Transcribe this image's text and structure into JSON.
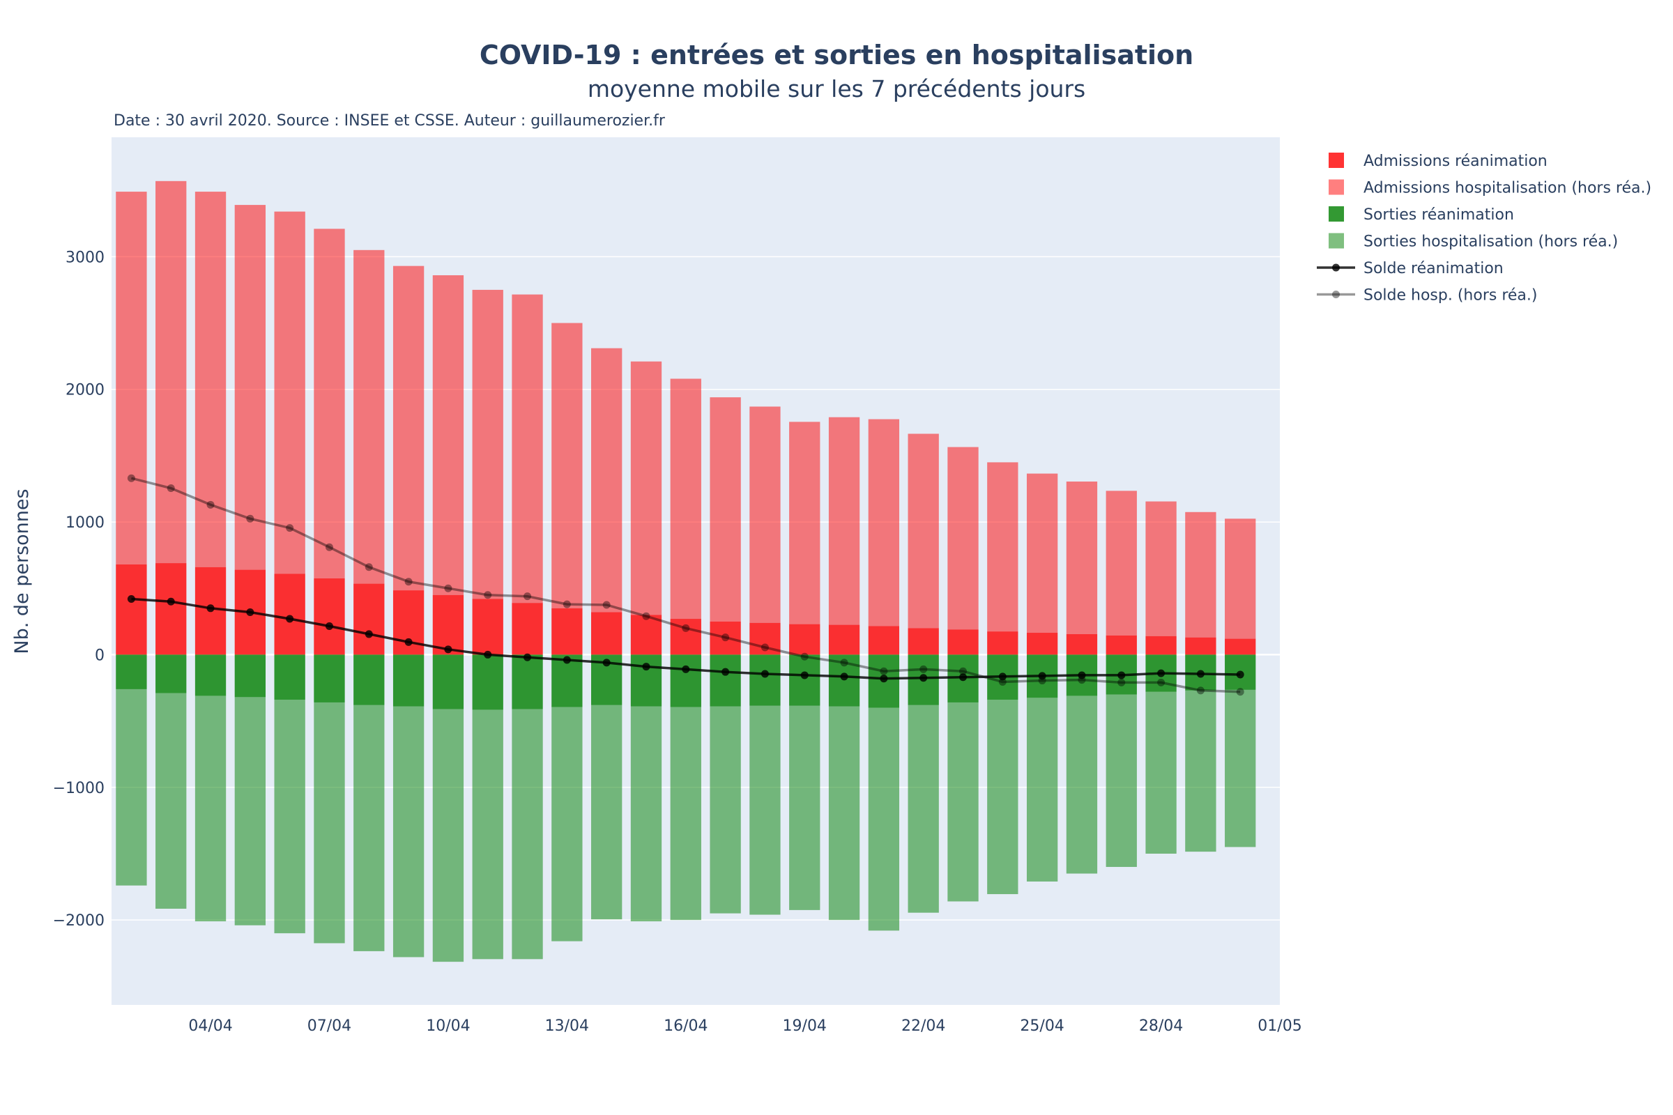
{
  "chart_data": {
    "type": "bar",
    "title": "COVID-19 : entrées et sorties en hospitalisation",
    "subtitle": "moyenne mobile sur les 7 précédents jours",
    "source": "Date : 30 avril 2020. Source : INSEE et CSSE. Auteur : guillaumerozier.fr",
    "ylabel": "Nb. de personnes",
    "xlabel": "",
    "barmode": "relative",
    "ylim": [
      -2640,
      3900
    ],
    "xlim": [
      "2020-04-01T12:00",
      "2020-05-01"
    ],
    "ytick_values": [
      -2000,
      -1000,
      0,
      1000,
      2000,
      3000
    ],
    "ytick_labels": [
      "−2000",
      "−1000",
      "0",
      "1000",
      "2000",
      "3000"
    ],
    "xtick_values": [
      "2020-04-04",
      "2020-04-07",
      "2020-04-10",
      "2020-04-13",
      "2020-04-16",
      "2020-04-19",
      "2020-04-22",
      "2020-04-25",
      "2020-04-28",
      "2020-05-01"
    ],
    "xtick_labels": [
      "04/04",
      "07/04",
      "10/04",
      "13/04",
      "16/04",
      "19/04",
      "22/04",
      "25/04",
      "28/04",
      "01/05"
    ],
    "x": [
      "2020-04-02",
      "2020-04-03",
      "2020-04-04",
      "2020-04-05",
      "2020-04-06",
      "2020-04-07",
      "2020-04-08",
      "2020-04-09",
      "2020-04-10",
      "2020-04-11",
      "2020-04-12",
      "2020-04-13",
      "2020-04-14",
      "2020-04-15",
      "2020-04-16",
      "2020-04-17",
      "2020-04-18",
      "2020-04-19",
      "2020-04-20",
      "2020-04-21",
      "2020-04-22",
      "2020-04-23",
      "2020-04-24",
      "2020-04-25",
      "2020-04-26",
      "2020-04-27",
      "2020-04-28",
      "2020-04-29",
      "2020-04-30"
    ],
    "grid": true,
    "legend_position": "right",
    "series": [
      {
        "name": "Admissions réanimation",
        "kind": "bar",
        "color": "#ff0000",
        "opacity": 0.8,
        "values": [
          680,
          690,
          660,
          640,
          610,
          575,
          535,
          485,
          450,
          420,
          390,
          350,
          320,
          300,
          270,
          250,
          240,
          230,
          225,
          215,
          200,
          190,
          175,
          165,
          155,
          145,
          140,
          130,
          120
        ]
      },
      {
        "name": "Admissions hospitalisation (hors réa.)",
        "kind": "bar",
        "color": "#ff0000",
        "opacity": 0.5,
        "values": [
          2810,
          2880,
          2830,
          2750,
          2730,
          2635,
          2515,
          2445,
          2410,
          2330,
          2325,
          2150,
          1990,
          1910,
          1810,
          1690,
          1630,
          1525,
          1565,
          1560,
          1465,
          1375,
          1275,
          1200,
          1150,
          1090,
          1015,
          945,
          905
        ]
      },
      {
        "name": "Sorties réanimation",
        "kind": "bar",
        "color": "#008000",
        "opacity": 0.8,
        "values": [
          -260,
          -290,
          -310,
          -320,
          -340,
          -360,
          -380,
          -390,
          -410,
          -415,
          -410,
          -395,
          -380,
          -390,
          -395,
          -390,
          -385,
          -385,
          -390,
          -400,
          -380,
          -360,
          -340,
          -325,
          -310,
          -300,
          -280,
          -270,
          -265
        ]
      },
      {
        "name": "Sorties hospitalisation (hors réa.)",
        "kind": "bar",
        "color": "#008000",
        "opacity": 0.5,
        "values": [
          -1480,
          -1625,
          -1700,
          -1720,
          -1760,
          -1815,
          -1855,
          -1890,
          -1905,
          -1880,
          -1885,
          -1765,
          -1615,
          -1620,
          -1605,
          -1560,
          -1575,
          -1540,
          -1610,
          -1680,
          -1565,
          -1500,
          -1465,
          -1385,
          -1340,
          -1300,
          -1220,
          -1215,
          -1185
        ]
      },
      {
        "name": "Solde réanimation",
        "kind": "line",
        "color": "#000000",
        "opacity": 0.8,
        "values": [
          420,
          400,
          350,
          320,
          270,
          215,
          155,
          95,
          40,
          0,
          -20,
          -40,
          -60,
          -90,
          -110,
          -130,
          -145,
          -155,
          -165,
          -180,
          -175,
          -170,
          -165,
          -160,
          -155,
          -155,
          -140,
          -145,
          -150
        ]
      },
      {
        "name": "Solde hosp. (hors réa.)",
        "kind": "line",
        "color": "#000000",
        "opacity": 0.4,
        "values": [
          1330,
          1255,
          1130,
          1025,
          955,
          810,
          660,
          550,
          500,
          450,
          440,
          380,
          375,
          290,
          200,
          130,
          55,
          -15,
          -60,
          -125,
          -110,
          -125,
          -205,
          -195,
          -190,
          -210,
          -210,
          -270,
          -280
        ]
      }
    ]
  }
}
